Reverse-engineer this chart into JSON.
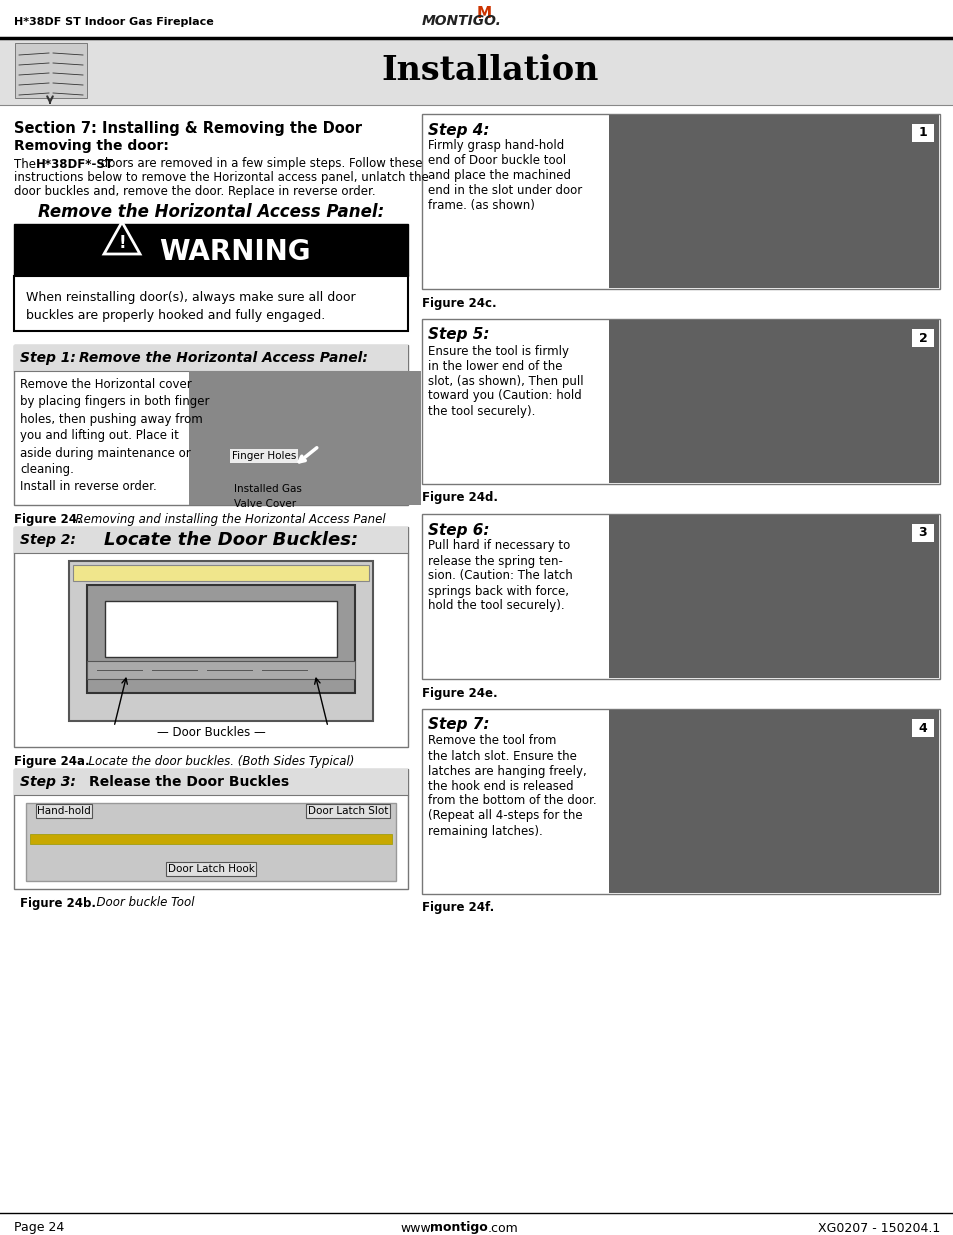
{
  "page_bg": "#ffffff",
  "header_bg": "#e0e0e0",
  "header_title": "Installation",
  "top_label": "H*38DF ST Indoor Gas Fireplace",
  "footer_left": "Page 24",
  "footer_right": "XG0207 - 150204.1",
  "section_title": "Section 7: Installing & Removing the Door",
  "subsection_title": "Removing the door:",
  "intro_line1": "The ",
  "intro_bold": "H*38DF*-ST",
  "intro_line1_rest": " doors are removed in a few simple steps. Follow these",
  "intro_line2": "instructions below to remove the Horizontal access panel, unlatch the",
  "intro_line3": "door buckles and, remove the door. Replace in reverse order.",
  "remove_panel_title": "Remove the Horizontal Access Panel:",
  "warning_text": "WARNING",
  "warning_body_1": "When reinstalling door(s), always make sure all door",
  "warning_body_2": "buckles are properly hooked and fully engaged.",
  "step1_header_italic": "Step 1:",
  "step1_header_bold": "   Remove the Horizontal Access Panel:",
  "step1_line1": "Remove the Horizontal cover",
  "step1_line2": "by placing fingers in both finger",
  "step1_line3": "holes, then pushing away from",
  "step1_line4": "you and lifting out. Place it",
  "step1_line5": "aside during maintenance or",
  "step1_line6": "cleaning.",
  "step1_line7": "Install in reverse order.",
  "step1_label1": "Finger Holes",
  "step1_label2_1": "Installed Gas",
  "step1_label2_2": "Valve Cover",
  "fig24_bold": "Figure 24.",
  "fig24_italic": "  Removing and installing the Horizontal Access Panel",
  "step2_header_italic": "Step 2:",
  "step2_header_bold": "Locate the Door Buckles:",
  "step2_label": "— Door Buckles —",
  "fig24a_bold": "Figure 24a.",
  "fig24a_italic": "  Locate the door buckles. (Both Sides Typical)",
  "step3_header_italic": "Step 3:",
  "step3_header_normal": "        Release the Door Buckles",
  "step3_label1": "Hand-hold",
  "step3_label2": "Door Latch Slot",
  "step3_label3": "Door Latch Hook",
  "fig24b_bold": "Figure 24b.",
  "fig24b_italic": "  Door buckle Tool",
  "step4_title": "Step 4:",
  "step4_line1": "Firmly grasp hand-hold",
  "step4_line2": "end of Door buckle tool",
  "step4_line3": "and place the machined",
  "step4_line4": "end in the slot under door",
  "step4_line5": "frame. (as shown)",
  "fig24c": "Figure 24c.",
  "step5_title": "Step 5:",
  "step5_line1": "Ensure the tool is firmly",
  "step5_line2": "in the lower end of the",
  "step5_line3": "slot, (as shown), Then pull",
  "step5_line4": "toward you (Caution: hold",
  "step5_line5": "the tool securely).",
  "fig24d": "Figure 24d.",
  "step6_title": "Step 6:",
  "step6_line1": "Pull hard if necessary to",
  "step6_line2": "release the spring ten-",
  "step6_line3": "sion. (Caution: The latch",
  "step6_line4": "springs back with force,",
  "step6_line5": "hold the tool securely).",
  "fig24e": "Figure 24e.",
  "step7_title": "Step 7:",
  "step7_line1": "Remove the tool from",
  "step7_line2": "the latch slot. Ensure the",
  "step7_line3": "latches are hanging freely,",
  "step7_line4": "the hook end is released",
  "step7_line5": "from the bottom of the door.",
  "step7_line6": "(Repeat all 4-steps for the",
  "step7_line7": "remaining latches).",
  "fig24f": "Figure 24f."
}
